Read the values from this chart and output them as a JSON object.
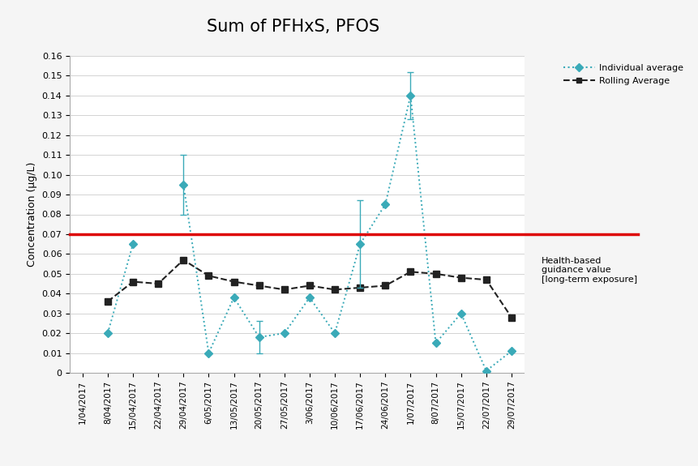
{
  "title": "Sum of PFHxS, PFOS",
  "ylabel": "Concentration (μg/L)",
  "xlabels": [
    "1/04/2017",
    "8/04/2017",
    "15/04/2017",
    "22/04/2017",
    "29/04/2017",
    "6/05/2017",
    "13/05/2017",
    "20/05/2017",
    "27/05/2017",
    "3/06/2017",
    "10/06/2017",
    "17/06/2017",
    "24/06/2017",
    "1/07/2017",
    "8/07/2017",
    "15/07/2017",
    "22/07/2017",
    "29/07/2017"
  ],
  "individual_avg": [
    null,
    0.02,
    0.065,
    null,
    0.095,
    0.01,
    0.038,
    0.018,
    0.02,
    0.038,
    0.02,
    0.065,
    0.085,
    0.14,
    0.015,
    0.03,
    0.001,
    0.011
  ],
  "individual_err_lo": [
    null,
    null,
    null,
    null,
    0.015,
    null,
    null,
    0.008,
    null,
    null,
    null,
    0.022,
    null,
    0.012,
    null,
    null,
    null,
    null
  ],
  "individual_err_hi": [
    null,
    null,
    null,
    null,
    0.015,
    null,
    null,
    0.008,
    null,
    null,
    null,
    0.022,
    null,
    0.012,
    null,
    null,
    null,
    null
  ],
  "rolling_avg": [
    null,
    0.036,
    0.046,
    0.045,
    0.057,
    0.049,
    0.046,
    0.044,
    0.042,
    0.044,
    0.042,
    0.043,
    0.044,
    0.051,
    0.05,
    0.048,
    0.047,
    0.028
  ],
  "rolling_err_lo": [
    null,
    null,
    null,
    null,
    null,
    null,
    null,
    null,
    null,
    null,
    null,
    null,
    null,
    null,
    null,
    null,
    null,
    null
  ],
  "rolling_err_hi": [
    null,
    null,
    null,
    null,
    null,
    null,
    null,
    null,
    null,
    null,
    null,
    null,
    null,
    null,
    null,
    null,
    null,
    null
  ],
  "guidance_value": 0.07,
  "ylim": [
    0,
    0.16
  ],
  "yticks": [
    0,
    0.01,
    0.02,
    0.03,
    0.04,
    0.05,
    0.06,
    0.07,
    0.08,
    0.09,
    0.1,
    0.11,
    0.12,
    0.13,
    0.14,
    0.15,
    0.16
  ],
  "individual_color": "#3aaab8",
  "rolling_color": "#222222",
  "guidance_color": "#dd0000",
  "legend_label_individual": "Individual average",
  "legend_label_rolling": "Rolling Average",
  "guidance_label": "Health-based\nguidance value\n[long-term exposure]",
  "background_color": "#f5f5f5",
  "plot_bg_color": "#ffffff",
  "grid_color": "#cccccc"
}
